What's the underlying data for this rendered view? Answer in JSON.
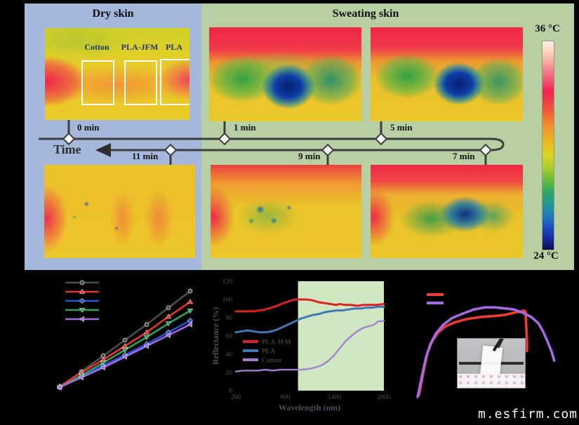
{
  "figure": {
    "watermark": "m.esfirm.com"
  },
  "panels": {
    "dry": {
      "title": "Dry skin",
      "bg_color": "#a6b7dc"
    },
    "sweating": {
      "title": "Sweating skin",
      "bg_color": "#b7cfa2"
    }
  },
  "thermal": {
    "fabric_labels": [
      "Cotton",
      "PLA-JFM",
      "PLA"
    ],
    "colorbar": {
      "top_label": "36 °C",
      "bottom_label": "24 °C"
    }
  },
  "timeline": {
    "axis_label": "Time",
    "top_marks": [
      "0 min",
      "1 min",
      "5 min"
    ],
    "bottom_marks": [
      "11 min",
      "9 min",
      "7 min"
    ]
  },
  "chart_data": [
    {
      "type": "line",
      "title": "",
      "xlabel": "",
      "ylabel": "",
      "ylim": [
        0,
        112
      ],
      "x": [
        0,
        1,
        2,
        3,
        4,
        5,
        6
      ],
      "legend_position": "top-left",
      "series": [
        {
          "name": "gray-circle-series",
          "color": "#4d4d4d",
          "marker": "circle",
          "values": [
            2,
            18,
            34,
            50,
            66,
            83,
            100
          ]
        },
        {
          "name": "red-triangle-series",
          "color": "#e8342c",
          "marker": "triangle-up",
          "values": [
            3,
            17,
            30,
            44,
            58,
            74,
            89
          ]
        },
        {
          "name": "blue-diamond-series",
          "color": "#2b53d3",
          "marker": "diamond",
          "values": [
            2,
            13,
            24,
            35,
            46,
            58,
            70
          ]
        },
        {
          "name": "green-triangle-series",
          "color": "#2ba45a",
          "marker": "triangle-down",
          "values": [
            2,
            14,
            27,
            40,
            53,
            67,
            80
          ]
        },
        {
          "name": "purple-triangle-series",
          "color": "#a569e2",
          "marker": "triangle-left",
          "values": [
            2,
            12,
            22,
            33,
            44,
            55,
            66
          ]
        }
      ]
    },
    {
      "type": "line",
      "title": "",
      "xlabel": "Wavelength (nm)",
      "ylabel": "Reflectance (%)",
      "ylim": [
        0,
        120
      ],
      "yticks": [
        0,
        20,
        40,
        60,
        80,
        100,
        120
      ],
      "xticks": [
        "200",
        "800",
        "1400",
        "2000"
      ],
      "shaded_band": {
        "x_start_frac": 0.42,
        "x_end_frac": 1.0,
        "color": "#cfe8c2"
      },
      "legend": [
        "PLA-JFM",
        "PLA",
        "Cotton"
      ],
      "series": [
        {
          "name": "PLA-JFM",
          "color": "#df1f1f",
          "points": [
            [
              0,
              87
            ],
            [
              4,
              87
            ],
            [
              8,
              87
            ],
            [
              12,
              87
            ],
            [
              16,
              88
            ],
            [
              20,
              89
            ],
            [
              24,
              91
            ],
            [
              28,
              93
            ],
            [
              32,
              96
            ],
            [
              36,
              98
            ],
            [
              40,
              100
            ],
            [
              44,
              100
            ],
            [
              48,
              100
            ],
            [
              52,
              99
            ],
            [
              56,
              97
            ],
            [
              60,
              96
            ],
            [
              64,
              95
            ],
            [
              68,
              94
            ],
            [
              70,
              95
            ],
            [
              74,
              94
            ],
            [
              78,
              94
            ],
            [
              82,
              93
            ],
            [
              86,
              94
            ],
            [
              90,
              94
            ],
            [
              95,
              94
            ],
            [
              100,
              95
            ]
          ]
        },
        {
          "name": "PLA",
          "color": "#3f78b4",
          "points": [
            [
              0,
              64
            ],
            [
              4,
              65
            ],
            [
              8,
              66
            ],
            [
              12,
              65
            ],
            [
              16,
              64
            ],
            [
              20,
              64
            ],
            [
              24,
              65
            ],
            [
              28,
              67
            ],
            [
              32,
              70
            ],
            [
              36,
              73
            ],
            [
              40,
              76
            ],
            [
              44,
              79
            ],
            [
              48,
              81
            ],
            [
              52,
              83
            ],
            [
              56,
              84
            ],
            [
              60,
              86
            ],
            [
              64,
              87
            ],
            [
              68,
              88
            ],
            [
              72,
              88
            ],
            [
              76,
              89
            ],
            [
              80,
              90
            ],
            [
              84,
              90
            ],
            [
              88,
              91
            ],
            [
              92,
              91
            ],
            [
              96,
              92
            ],
            [
              100,
              92
            ]
          ]
        },
        {
          "name": "Cotton",
          "color": "#a37fd2",
          "points": [
            [
              0,
              21
            ],
            [
              5,
              22
            ],
            [
              10,
              22
            ],
            [
              15,
              22
            ],
            [
              20,
              23
            ],
            [
              25,
              22
            ],
            [
              30,
              23
            ],
            [
              35,
              23
            ],
            [
              40,
              23
            ],
            [
              45,
              23
            ],
            [
              50,
              24
            ],
            [
              55,
              26
            ],
            [
              58,
              28
            ],
            [
              62,
              32
            ],
            [
              66,
              38
            ],
            [
              70,
              46
            ],
            [
              74,
              54
            ],
            [
              78,
              60
            ],
            [
              82,
              65
            ],
            [
              85,
              68
            ],
            [
              88,
              70
            ],
            [
              91,
              71
            ],
            [
              94,
              73
            ],
            [
              96,
              76
            ],
            [
              98,
              76
            ],
            [
              100,
              77
            ]
          ]
        }
      ]
    },
    {
      "type": "line",
      "title": "",
      "xlabel": "",
      "ylabel": "",
      "series": [
        {
          "name": "red-curve",
          "color": "#f03b34",
          "points": [
            [
              2,
              4
            ],
            [
              4,
              18
            ],
            [
              6,
              32
            ],
            [
              8,
              44
            ],
            [
              11,
              54
            ],
            [
              15,
              62
            ],
            [
              20,
              68
            ],
            [
              27,
              72
            ],
            [
              35,
              75
            ],
            [
              45,
              77
            ],
            [
              55,
              78
            ],
            [
              62,
              79
            ],
            [
              68,
              81
            ],
            [
              72,
              82
            ],
            [
              75,
              83
            ],
            [
              76,
              82
            ],
            [
              76.5,
              68
            ],
            [
              77,
              55
            ],
            [
              77,
              45
            ]
          ]
        },
        {
          "name": "purple-curve",
          "color": "#a569e2",
          "points": [
            [
              1,
              2
            ],
            [
              3,
              15
            ],
            [
              5,
              28
            ],
            [
              7,
              40
            ],
            [
              10,
              52
            ],
            [
              14,
              62
            ],
            [
              19,
              70
            ],
            [
              25,
              76
            ],
            [
              32,
              80
            ],
            [
              40,
              84
            ],
            [
              48,
              86
            ],
            [
              55,
              86
            ],
            [
              62,
              85
            ],
            [
              68,
              84
            ],
            [
              74,
              81
            ],
            [
              80,
              77
            ],
            [
              85,
              71
            ],
            [
              88,
              64
            ],
            [
              91,
              55
            ],
            [
              94,
              45
            ],
            [
              96,
              36
            ]
          ]
        }
      ]
    }
  ]
}
